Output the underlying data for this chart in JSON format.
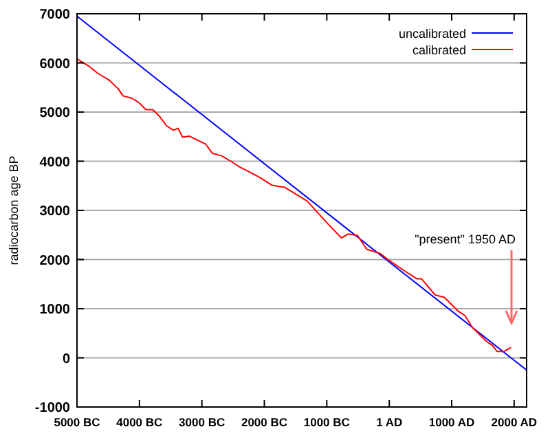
{
  "chart_data": {
    "type": "line",
    "ylabel": "radiocarbon age BP",
    "xlim": [
      -5000,
      2200
    ],
    "ylim": [
      -1000,
      7000
    ],
    "xticks": [
      {
        "value": -5000,
        "label": "5000 BC"
      },
      {
        "value": -4000,
        "label": "4000 BC"
      },
      {
        "value": -3000,
        "label": "3000 BC"
      },
      {
        "value": -2000,
        "label": "2000 BC"
      },
      {
        "value": -1000,
        "label": "1000 BC"
      },
      {
        "value": 1,
        "label": "1 AD"
      },
      {
        "value": 1000,
        "label": "1000 AD"
      },
      {
        "value": 2000,
        "label": "2000 AD"
      }
    ],
    "yticks": [
      -1000,
      0,
      1000,
      2000,
      3000,
      4000,
      5000,
      6000,
      7000
    ],
    "grid": "y",
    "legend": "top right",
    "line_style": "solid",
    "marker": "none",
    "annotations": [
      "\"present\" 1950 AD"
    ],
    "series": [
      {
        "name": "uncalibrated",
        "color": "#0000ff",
        "x": [
          -5000,
          2200
        ],
        "values": [
          6950,
          -250
        ]
      },
      {
        "name": "calibrated",
        "color": "#ff0000",
        "x": [
          -5000,
          -4816,
          -4669,
          -4485,
          -4338,
          -4265,
          -4118,
          -4007,
          -3897,
          -3787,
          -3676,
          -3566,
          -3456,
          -3382,
          -3309,
          -3199,
          -3088,
          -2941,
          -2831,
          -2684,
          -2537,
          -2390,
          -2206,
          -2059,
          -1875,
          -1675,
          -1316,
          -949,
          -765,
          -655,
          -508,
          -361,
          -140,
          0,
          221,
          441,
          515,
          735,
          882,
          1103,
          1213,
          1324,
          1544,
          1654,
          1728,
          1838,
          1949
        ],
        "values": [
          6080,
          5940,
          5790,
          5650,
          5470,
          5330,
          5280,
          5190,
          5050,
          5050,
          4910,
          4720,
          4630,
          4670,
          4490,
          4510,
          4440,
          4350,
          4160,
          4110,
          4000,
          3880,
          3760,
          3660,
          3510,
          3470,
          3190,
          2680,
          2440,
          2520,
          2490,
          2210,
          2120,
          1980,
          1790,
          1610,
          1610,
          1280,
          1230,
          950,
          860,
          630,
          350,
          250,
          130,
          130,
          210
        ]
      }
    ]
  }
}
